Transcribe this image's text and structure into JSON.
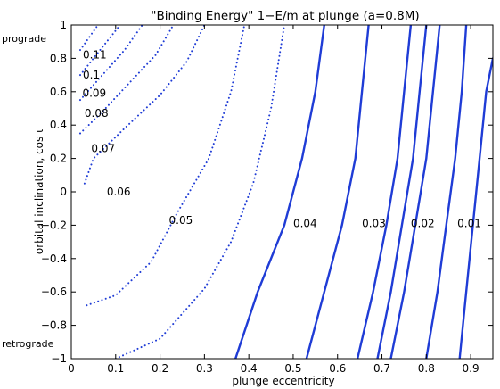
{
  "chart_data": {
    "type": "line",
    "title": "\"Binding Energy\" 1−E/m at plunge (a=0.8M)",
    "xlabel": "plunge eccentricity",
    "ylabel": "orbital inclination, cos ι",
    "xlim": [
      0,
      0.95
    ],
    "ylim": [
      -1,
      1
    ],
    "xticks": [
      0,
      0.1,
      0.2,
      0.3,
      0.4,
      0.5,
      0.6,
      0.7,
      0.8,
      0.9
    ],
    "xtick_labels": [
      "0",
      "0.1",
      "0.2",
      "0.3",
      "0.4",
      "0.5",
      "0.6",
      "0.7",
      "0.8",
      "0.9"
    ],
    "yticks": [
      -1,
      -0.8,
      -0.6,
      -0.4,
      -0.2,
      0,
      0.2,
      0.4,
      0.6,
      0.8,
      1
    ],
    "ytick_labels": [
      "−1",
      "−0.8",
      "−0.6",
      "−0.4",
      "−0.2",
      "0",
      "0.2",
      "0.4",
      "0.6",
      "0.8",
      "1"
    ],
    "grid": false,
    "line_color": "#1f3cd6",
    "side_labels": {
      "top": "prograde",
      "bottom": "retrograde"
    },
    "contours": [
      {
        "label": "0.11",
        "points": [
          [
            0.02,
            0.85
          ],
          [
            0.06,
            1.0
          ]
        ]
      },
      {
        "label": "0.1",
        "points": [
          [
            0.02,
            0.7
          ],
          [
            0.08,
            0.9
          ],
          [
            0.11,
            1.0
          ]
        ]
      },
      {
        "label": "0.09",
        "points": [
          [
            0.02,
            0.55
          ],
          [
            0.07,
            0.7
          ],
          [
            0.12,
            0.85
          ],
          [
            0.16,
            1.0
          ]
        ]
      },
      {
        "label": "0.08",
        "points": [
          [
            0.02,
            0.35
          ],
          [
            0.07,
            0.48
          ],
          [
            0.13,
            0.65
          ],
          [
            0.19,
            0.82
          ],
          [
            0.23,
            1.0
          ]
        ]
      },
      {
        "label": "0.07",
        "points": [
          [
            0.03,
            0.05
          ],
          [
            0.05,
            0.2
          ],
          [
            0.12,
            0.38
          ],
          [
            0.2,
            0.58
          ],
          [
            0.26,
            0.78
          ],
          [
            0.3,
            1.0
          ]
        ]
      },
      {
        "label": "0.06",
        "points": [
          [
            0.035,
            -0.68
          ],
          [
            0.1,
            -0.62
          ],
          [
            0.18,
            -0.42
          ],
          [
            0.24,
            -0.12
          ],
          [
            0.31,
            0.2
          ],
          [
            0.36,
            0.6
          ],
          [
            0.39,
            1.0
          ]
        ]
      },
      {
        "label": "0.05",
        "points": [
          [
            0.1,
            -1.0
          ],
          [
            0.2,
            -0.88
          ],
          [
            0.3,
            -0.58
          ],
          [
            0.36,
            -0.3
          ],
          [
            0.41,
            0.05
          ],
          [
            0.45,
            0.5
          ],
          [
            0.48,
            1.0
          ]
        ]
      },
      {
        "label": "0.04",
        "points": [
          [
            0.37,
            -1.0
          ],
          [
            0.42,
            -0.6
          ],
          [
            0.48,
            -0.2
          ],
          [
            0.52,
            0.2
          ],
          [
            0.55,
            0.6
          ],
          [
            0.57,
            1.0
          ]
        ]
      },
      {
        "label": "0.03",
        "points": [
          [
            0.53,
            -1.0
          ],
          [
            0.57,
            -0.6
          ],
          [
            0.61,
            -0.2
          ],
          [
            0.64,
            0.2
          ],
          [
            0.655,
            0.6
          ],
          [
            0.67,
            1.0
          ]
        ]
      },
      {
        "label": "0.02",
        "points": [
          [
            0.645,
            -1.0
          ],
          [
            0.68,
            -0.6
          ],
          [
            0.71,
            -0.2
          ],
          [
            0.735,
            0.2
          ],
          [
            0.75,
            0.6
          ],
          [
            0.765,
            1.0
          ]
        ]
      },
      {
        "label": "",
        "points": [
          [
            0.69,
            -1.0
          ],
          [
            0.72,
            -0.6
          ],
          [
            0.745,
            -0.2
          ],
          [
            0.77,
            0.2
          ],
          [
            0.785,
            0.6
          ],
          [
            0.8,
            1.0
          ]
        ]
      },
      {
        "label": "",
        "points": [
          [
            0.72,
            -1.0
          ],
          [
            0.75,
            -0.6
          ],
          [
            0.775,
            -0.2
          ],
          [
            0.8,
            0.2
          ],
          [
            0.815,
            0.6
          ],
          [
            0.83,
            1.0
          ]
        ]
      },
      {
        "label": "0.01",
        "points": [
          [
            0.8,
            -1.0
          ],
          [
            0.825,
            -0.6
          ],
          [
            0.845,
            -0.2
          ],
          [
            0.865,
            0.2
          ],
          [
            0.88,
            0.6
          ],
          [
            0.89,
            1.0
          ]
        ]
      },
      {
        "label": "",
        "points": [
          [
            0.875,
            -1.0
          ],
          [
            0.89,
            -0.6
          ],
          [
            0.905,
            -0.2
          ],
          [
            0.92,
            0.2
          ],
          [
            0.935,
            0.6
          ],
          [
            0.95,
            0.8
          ]
        ]
      }
    ],
    "contour_label_positions": [
      {
        "label": "0.11",
        "x": 0.026,
        "y": 0.82
      },
      {
        "label": "0.1",
        "x": 0.026,
        "y": 0.7
      },
      {
        "label": "0.09",
        "x": 0.025,
        "y": 0.59
      },
      {
        "label": "0.08",
        "x": 0.03,
        "y": 0.47
      },
      {
        "label": "0.07",
        "x": 0.045,
        "y": 0.26
      },
      {
        "label": "0.06",
        "x": 0.08,
        "y": 0.0
      },
      {
        "label": "0.05",
        "x": 0.22,
        "y": -0.17
      },
      {
        "label": "0.04",
        "x": 0.5,
        "y": -0.19
      },
      {
        "label": "0.03",
        "x": 0.655,
        "y": -0.19
      },
      {
        "label": "0.02",
        "x": 0.765,
        "y": -0.19
      },
      {
        "label": "0.01",
        "x": 0.87,
        "y": -0.19
      }
    ]
  }
}
